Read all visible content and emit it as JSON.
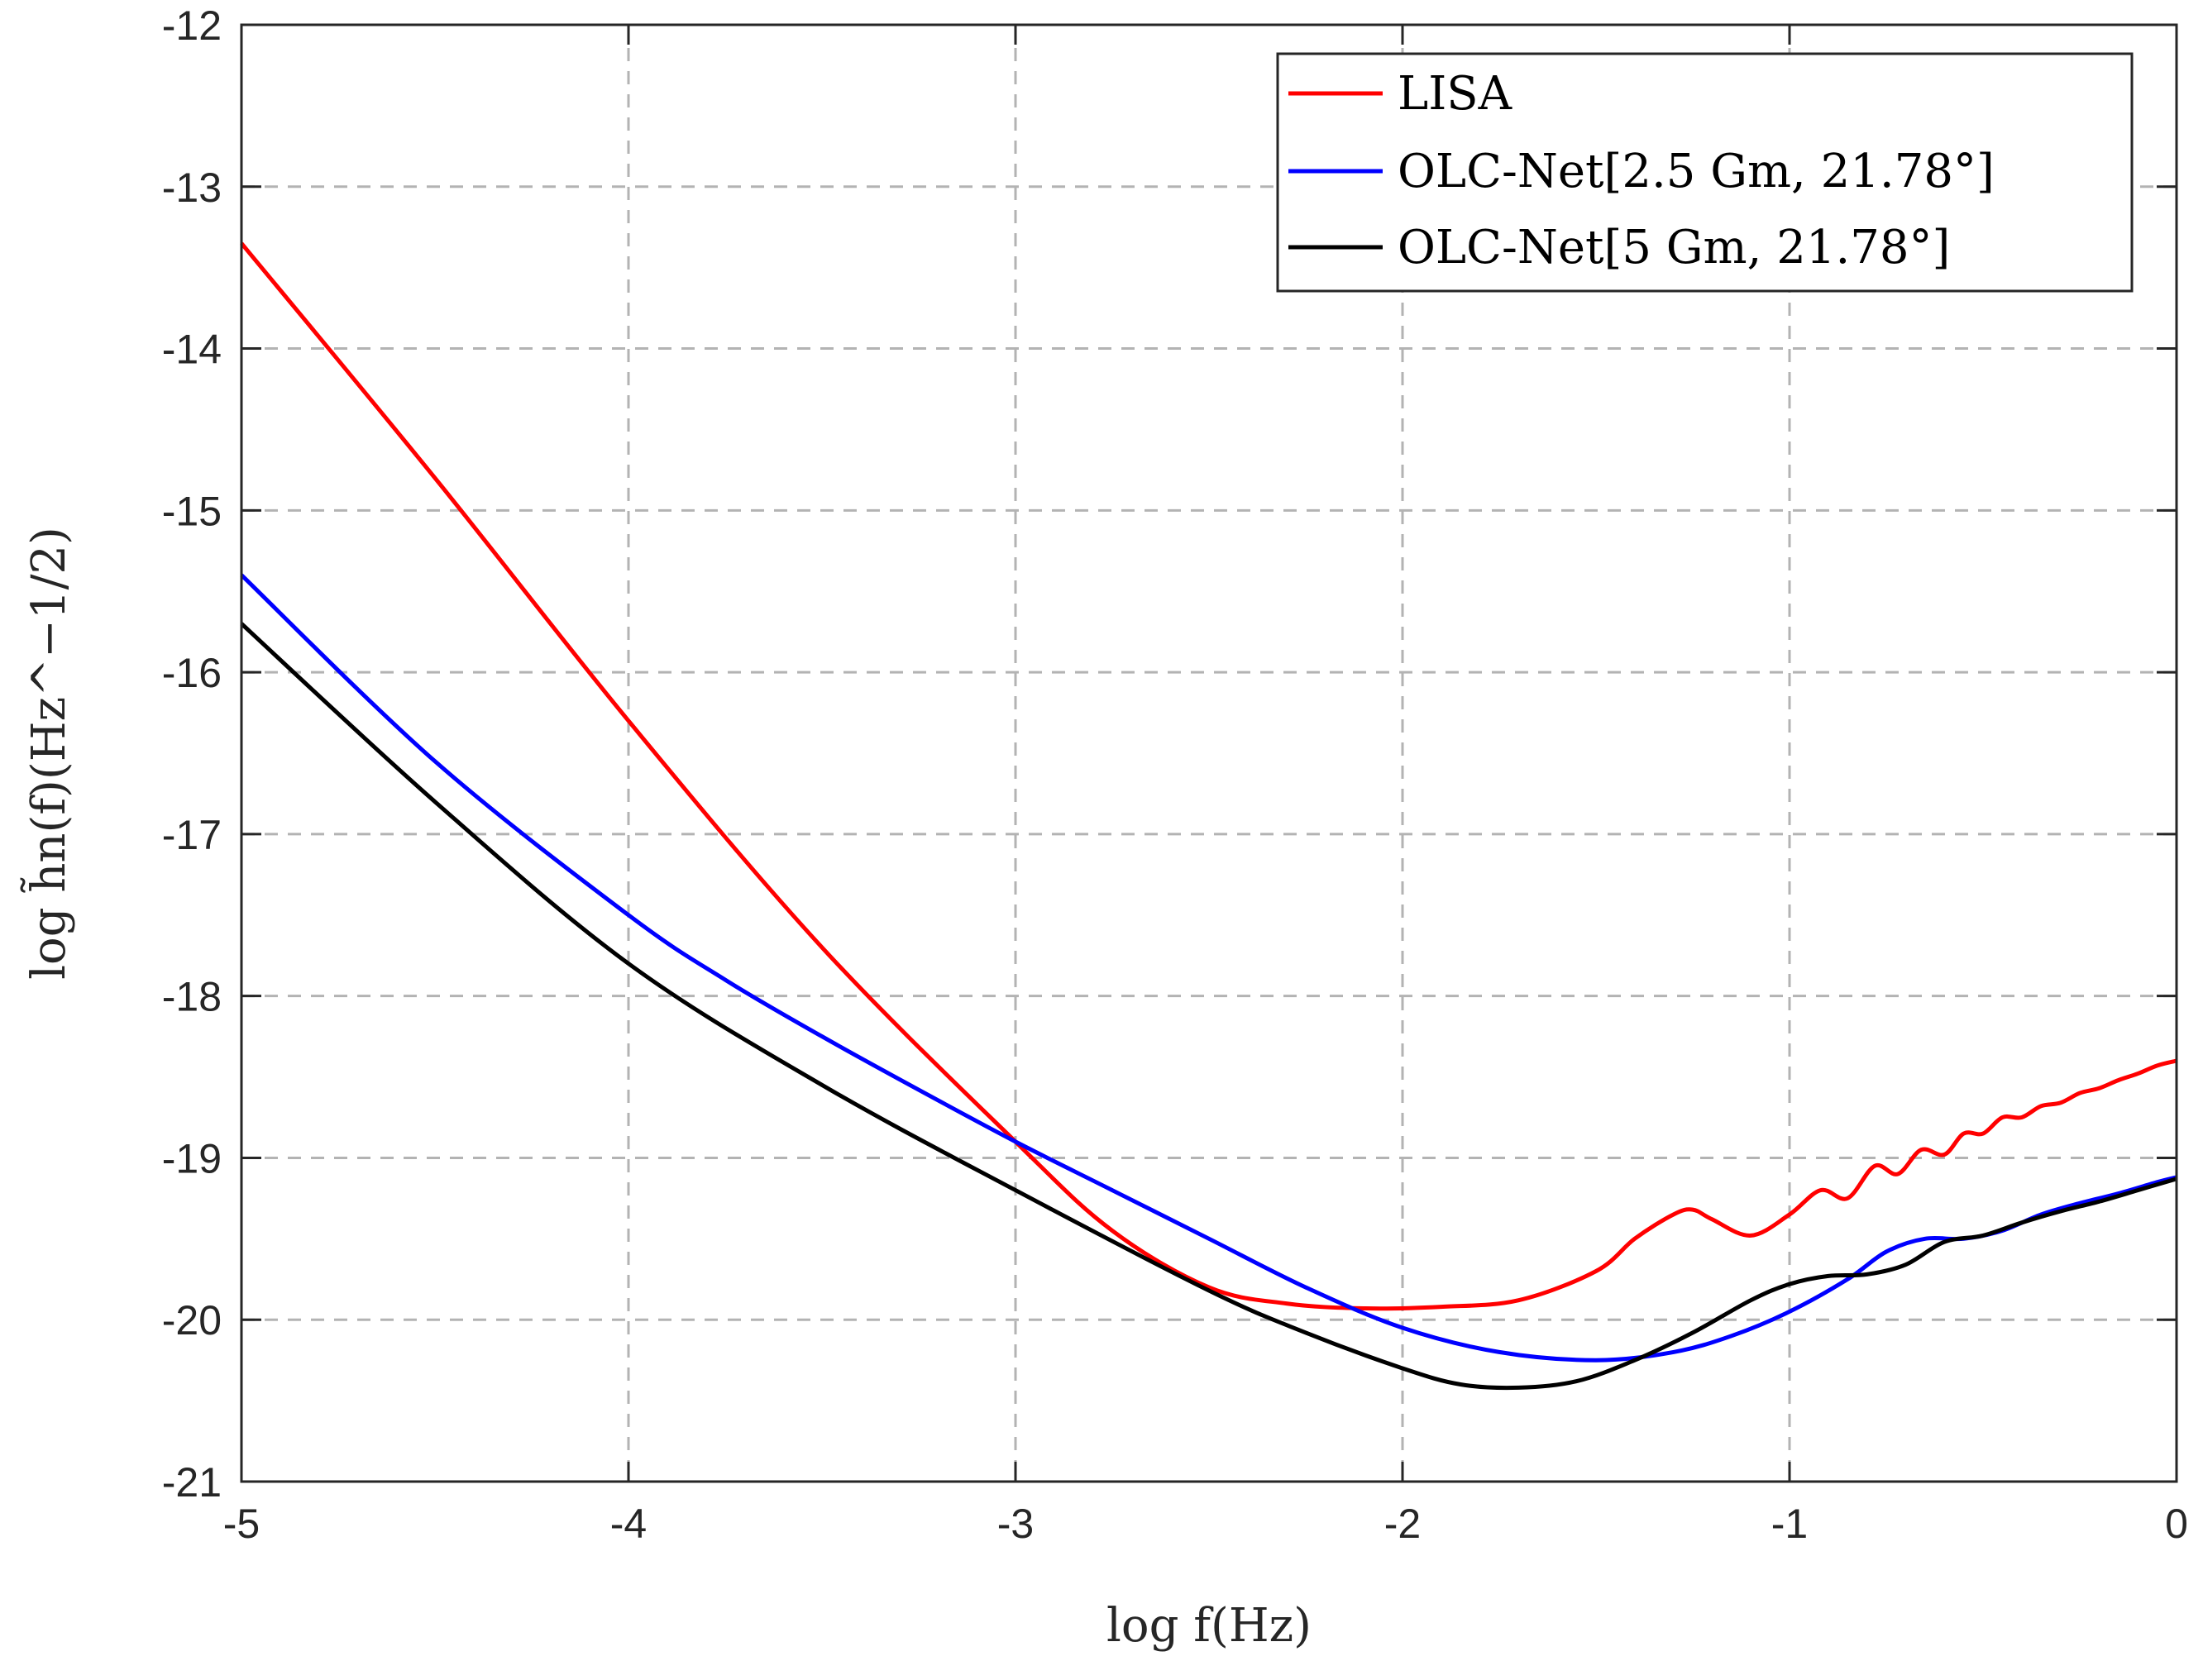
{
  "chart_data": {
    "type": "line",
    "xlabel": "log f(Hz)",
    "ylabel": "log h̃n(f)(Hz^−1/2)",
    "xlim": [
      -5,
      0
    ],
    "ylim": [
      -21,
      -12
    ],
    "xticks": [
      "-5",
      "-4",
      "-3",
      "-2",
      "-1",
      "0"
    ],
    "yticks": [
      "-12",
      "-13",
      "-14",
      "-15",
      "-16",
      "-17",
      "-18",
      "-19",
      "-20",
      "-21"
    ],
    "grid": true,
    "legend_position": "top-right",
    "series": [
      {
        "name": "LISA",
        "color": "#ff0000",
        "x": [
          -5.0,
          -4.5,
          -4.0,
          -3.5,
          -3.0,
          -2.75,
          -2.5,
          -2.3,
          -2.1,
          -1.9,
          -1.7,
          -1.5,
          -1.4,
          -1.3,
          -1.25,
          -1.2,
          -1.1,
          -1.0,
          -0.92,
          -0.85,
          -0.78,
          -0.72,
          -0.66,
          -0.6,
          -0.55,
          -0.5,
          -0.45,
          -0.4,
          -0.35,
          -0.3,
          -0.25,
          -0.2,
          -0.15,
          -0.1,
          -0.05,
          0.0
        ],
        "y": [
          -13.35,
          -14.8,
          -16.3,
          -17.7,
          -18.9,
          -19.45,
          -19.8,
          -19.9,
          -19.93,
          -19.92,
          -19.88,
          -19.7,
          -19.5,
          -19.35,
          -19.32,
          -19.38,
          -19.48,
          -19.35,
          -19.2,
          -19.25,
          -19.05,
          -19.1,
          -18.95,
          -18.98,
          -18.85,
          -18.85,
          -18.75,
          -18.75,
          -18.68,
          -18.66,
          -18.6,
          -18.57,
          -18.52,
          -18.48,
          -18.43,
          -18.4
        ]
      },
      {
        "name": "OLC-Net[2.5 Gm,  21.78°]",
        "color": "#0000ff",
        "x": [
          -5.0,
          -4.5,
          -4.0,
          -3.75,
          -3.5,
          -3.25,
          -3.0,
          -2.75,
          -2.5,
          -2.25,
          -2.0,
          -1.75,
          -1.5,
          -1.3,
          -1.15,
          -1.0,
          -0.85,
          -0.75,
          -0.65,
          -0.55,
          -0.45,
          -0.35,
          -0.25,
          -0.15,
          -0.05,
          0.0
        ],
        "y": [
          -15.4,
          -16.55,
          -17.5,
          -17.9,
          -18.25,
          -18.58,
          -18.9,
          -19.2,
          -19.5,
          -19.8,
          -20.05,
          -20.2,
          -20.25,
          -20.2,
          -20.1,
          -19.95,
          -19.75,
          -19.58,
          -19.5,
          -19.5,
          -19.45,
          -19.35,
          -19.28,
          -19.22,
          -19.15,
          -19.12
        ]
      },
      {
        "name": "OLC-Net[5 Gm,  21.78°]",
        "color": "#000000",
        "x": [
          -5.0,
          -4.5,
          -4.0,
          -3.5,
          -3.0,
          -2.5,
          -2.25,
          -2.0,
          -1.85,
          -1.7,
          -1.55,
          -1.4,
          -1.25,
          -1.1,
          -1.0,
          -0.9,
          -0.8,
          -0.7,
          -0.6,
          -0.5,
          -0.4,
          -0.3,
          -0.2,
          -0.1,
          0.0
        ],
        "y": [
          -15.7,
          -16.8,
          -17.8,
          -18.55,
          -19.2,
          -19.82,
          -20.08,
          -20.3,
          -20.4,
          -20.42,
          -20.38,
          -20.25,
          -20.08,
          -19.88,
          -19.78,
          -19.73,
          -19.72,
          -19.66,
          -19.52,
          -19.48,
          -19.4,
          -19.33,
          -19.27,
          -19.2,
          -19.13
        ]
      }
    ]
  }
}
